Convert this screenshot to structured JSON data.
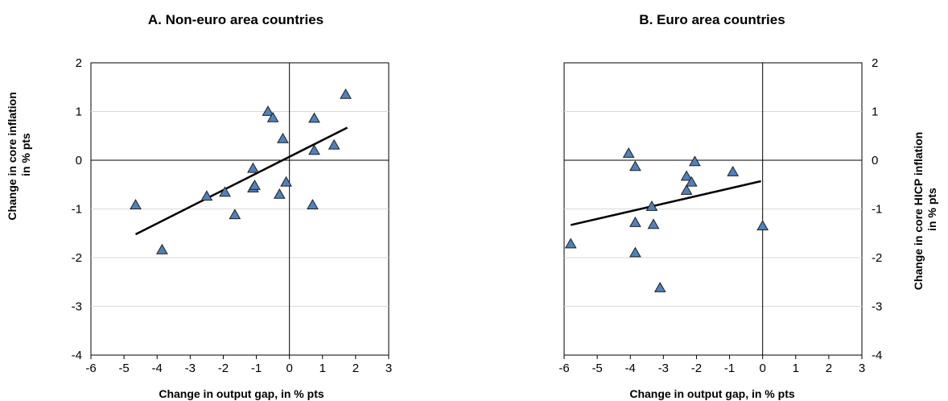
{
  "chart_data": [
    {
      "type": "scatter",
      "title": "A. Non-euro area countries",
      "xlabel": "Change in output gap, in % pts",
      "ylabel_lines": [
        "Change in core inflation",
        "in % pts"
      ],
      "ylabel_side": "left",
      "xlim": [
        -6,
        3
      ],
      "ylim": [
        -4,
        2
      ],
      "xticks": [
        -6,
        -5,
        -4,
        -3,
        -2,
        -1,
        0,
        1,
        2,
        3
      ],
      "yticks": [
        -4,
        -3,
        -2,
        -1,
        0,
        1,
        2
      ],
      "grid": "horizontal",
      "marker": "triangle",
      "marker_color": "#4F81BD",
      "points": [
        {
          "x": -4.65,
          "y": -0.92
        },
        {
          "x": -3.85,
          "y": -1.84
        },
        {
          "x": -2.5,
          "y": -0.74
        },
        {
          "x": -1.95,
          "y": -0.66
        },
        {
          "x": -1.65,
          "y": -1.12
        },
        {
          "x": -1.1,
          "y": -0.17
        },
        {
          "x": -1.1,
          "y": -0.57
        },
        {
          "x": -1.05,
          "y": -0.52
        },
        {
          "x": -0.65,
          "y": 1.0
        },
        {
          "x": -0.5,
          "y": 0.87
        },
        {
          "x": -0.3,
          "y": -0.7
        },
        {
          "x": -0.2,
          "y": 0.44
        },
        {
          "x": -0.1,
          "y": -0.45
        },
        {
          "x": 0.7,
          "y": -0.92
        },
        {
          "x": 0.75,
          "y": 0.86
        },
        {
          "x": 0.75,
          "y": 0.2
        },
        {
          "x": 1.35,
          "y": 0.31
        },
        {
          "x": 1.7,
          "y": 1.35
        }
      ],
      "trendline": {
        "x": [
          -4.65,
          1.75
        ],
        "y": [
          -1.52,
          0.67
        ]
      }
    },
    {
      "type": "scatter",
      "title": "B. Euro area countries",
      "xlabel": "Change in output gap, in % pts",
      "ylabel_lines": [
        "Change in core HICP inflation",
        "in % pts"
      ],
      "ylabel_side": "right",
      "xlim": [
        -6,
        3
      ],
      "ylim": [
        -4,
        2
      ],
      "xticks": [
        -6,
        -5,
        -4,
        -3,
        -2,
        -1,
        0,
        1,
        2,
        3
      ],
      "yticks": [
        -4,
        -3,
        -2,
        -1,
        0,
        1,
        2
      ],
      "grid": "horizontal",
      "marker": "triangle",
      "marker_color": "#4F81BD",
      "points": [
        {
          "x": -5.8,
          "y": -1.72
        },
        {
          "x": -4.05,
          "y": 0.14
        },
        {
          "x": -3.85,
          "y": -0.13
        },
        {
          "x": -3.85,
          "y": -1.28
        },
        {
          "x": -3.85,
          "y": -1.9
        },
        {
          "x": -3.35,
          "y": -0.95
        },
        {
          "x": -3.3,
          "y": -1.32
        },
        {
          "x": -3.1,
          "y": -2.62
        },
        {
          "x": -2.3,
          "y": -0.33
        },
        {
          "x": -2.3,
          "y": -0.62
        },
        {
          "x": -2.15,
          "y": -0.45
        },
        {
          "x": -2.05,
          "y": -0.03
        },
        {
          "x": -0.9,
          "y": -0.24
        },
        {
          "x": 0.0,
          "y": -1.35
        }
      ],
      "trendline": {
        "x": [
          -5.8,
          -0.05
        ],
        "y": [
          -1.33,
          -0.43
        ]
      }
    }
  ]
}
